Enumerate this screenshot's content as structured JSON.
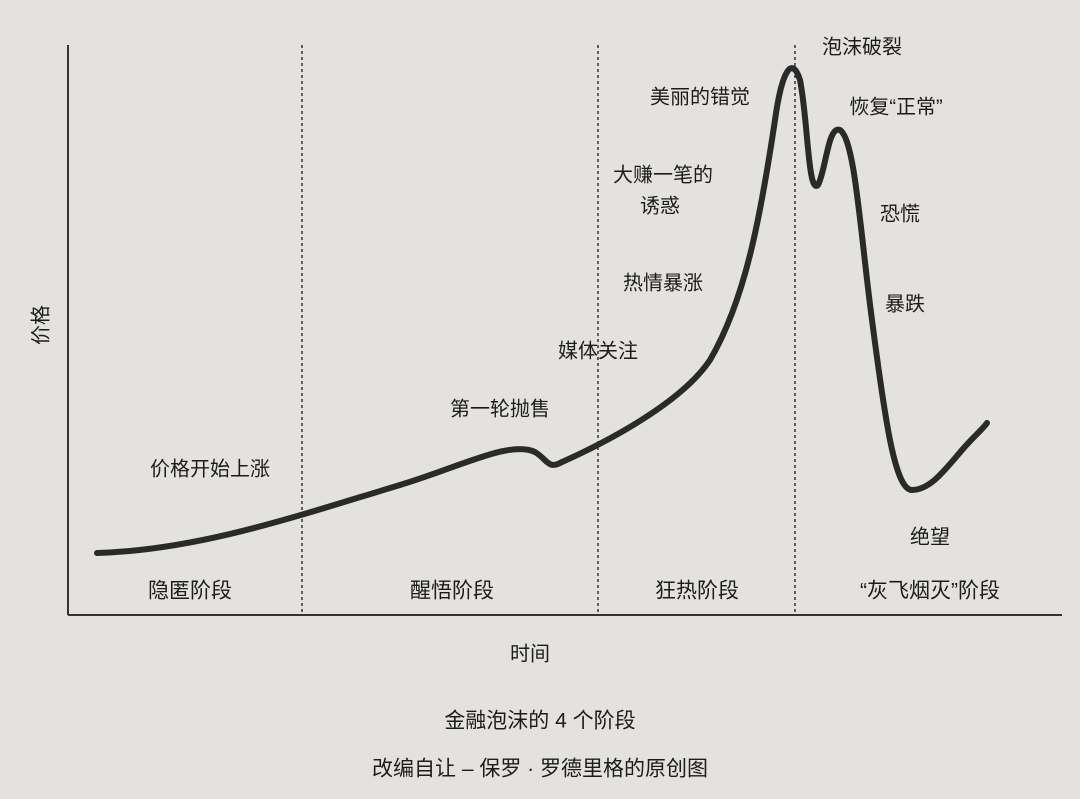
{
  "axes": {
    "y_label": "价格",
    "x_label": "时间"
  },
  "phases": [
    "隐匿阶段",
    "醒悟阶段",
    "狂热阶段",
    "“灰飞烟灭”阶段"
  ],
  "annotations": [
    "价格开始上涨",
    "第一轮抛售",
    "媒体关注",
    "热情暴涨",
    "大赚一笔的",
    "诱惑",
    "美丽的错觉",
    "泡沫破裂",
    "恢复“正常”",
    "恐慌",
    "暴跌",
    "绝望"
  ],
  "caption": {
    "title": "金融泡沫的 4 个阶段",
    "source": "改编自让 – 保罗 · 罗德里格的原创图"
  }
}
